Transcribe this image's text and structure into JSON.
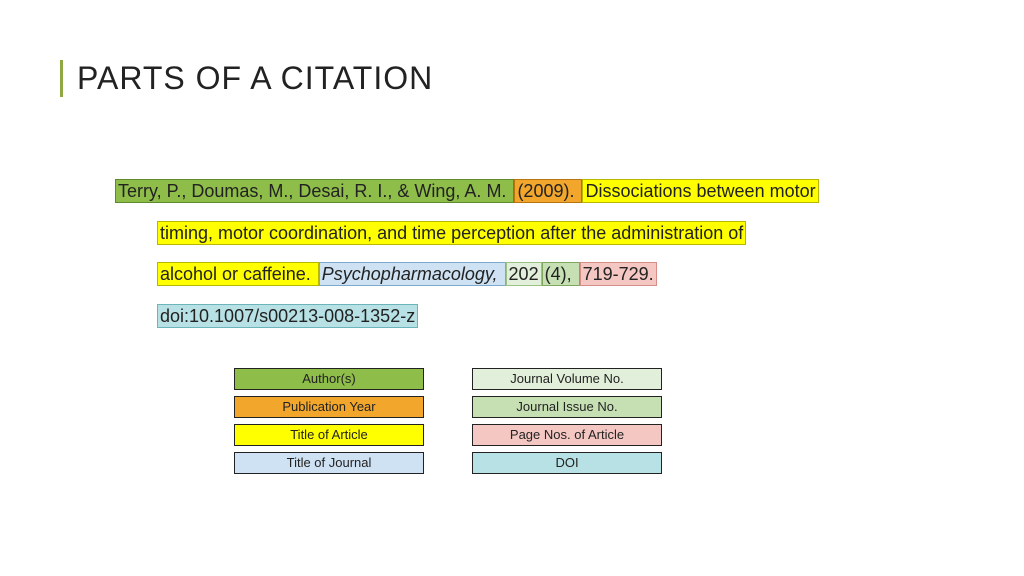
{
  "title": "PARTS OF A CITATION",
  "colors": {
    "author": {
      "bg": "#8fbd4a",
      "border": "#5d8a2e"
    },
    "year": {
      "bg": "#f2a72c",
      "border": "#b77512"
    },
    "article": {
      "bg": "#ffff00",
      "border": "#b7b700"
    },
    "journal": {
      "bg": "#cfe2f3",
      "border": "#7da9cc"
    },
    "volume": {
      "bg": "#e2efda",
      "border": "#9cc184"
    },
    "issue": {
      "bg": "#c6e0b4",
      "border": "#7fa85e"
    },
    "pages": {
      "bg": "#f4c7c3",
      "border": "#d68e88"
    },
    "doi": {
      "bg": "#b7e1e4",
      "border": "#6bb4b9"
    }
  },
  "citation": {
    "authors": "Terry, P., Doumas, M., Desai, R. I., & Wing, A. M. ",
    "year": "(2009). ",
    "title_l1": "Dissociations between motor",
    "title_l2": "timing, motor coordination, and time perception after the administration of",
    "title_l3": "alcohol or caffeine. ",
    "journal": "Psychopharmacology, ",
    "volume": "202",
    "issue": "(4), ",
    "pages": "719-729.",
    "doi": "doi:10.1007/s00213-008-1352-z"
  },
  "legend": {
    "left": [
      {
        "label": "Author(s)",
        "cls": "c-author"
      },
      {
        "label": "Publication Year",
        "cls": "c-year"
      },
      {
        "label": "Title of Article",
        "cls": "c-title"
      },
      {
        "label": "Title of Journal",
        "cls": "c-journal"
      }
    ],
    "right": [
      {
        "label": "Journal Volume No.",
        "cls": "c-volume"
      },
      {
        "label": "Journal Issue No.",
        "cls": "c-issue"
      },
      {
        "label": "Page Nos. of Article",
        "cls": "c-pages"
      },
      {
        "label": "DOI",
        "cls": "c-doi"
      }
    ]
  }
}
